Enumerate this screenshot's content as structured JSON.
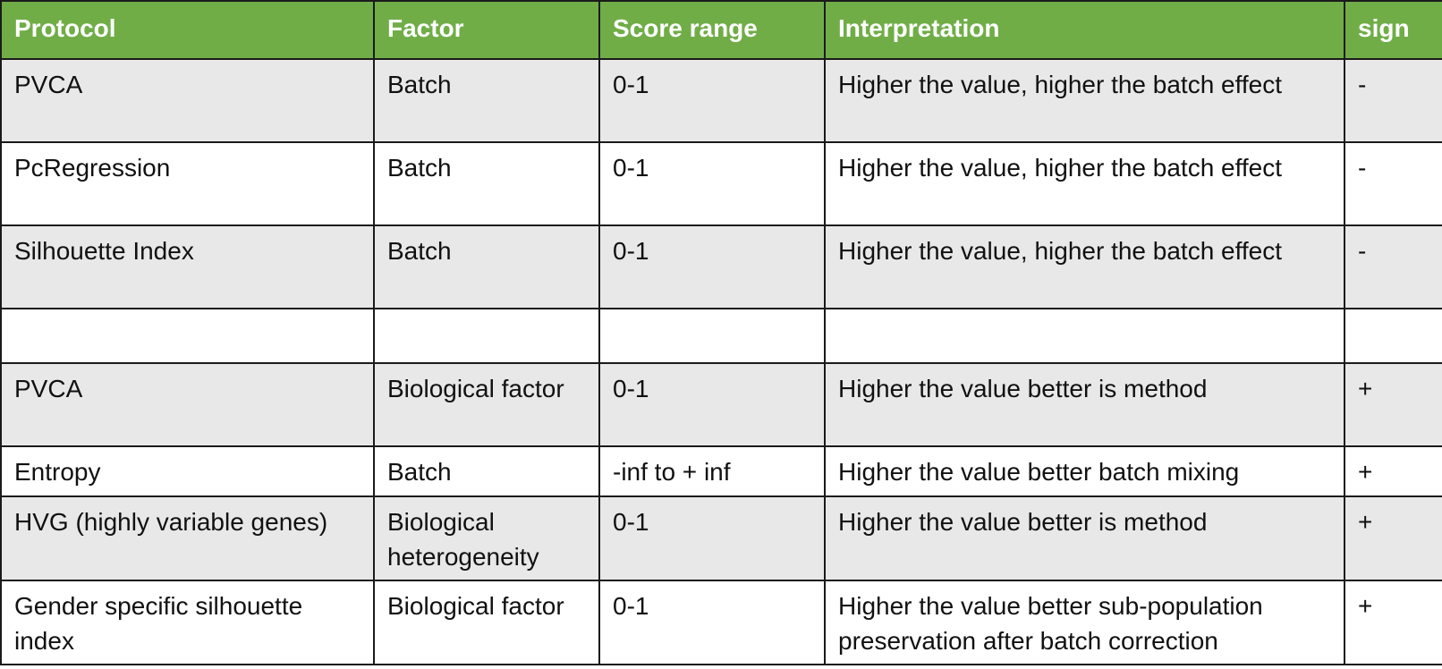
{
  "header": {
    "protocol": "Protocol",
    "factor": "Factor",
    "score_range": "Score range",
    "interpretation": "Interpretation",
    "sign": "sign"
  },
  "rows": [
    {
      "protocol": "PVCA",
      "factor": "Batch",
      "score_range": "0-1",
      "interpretation": "Higher the value, higher the batch effect",
      "sign": "-"
    },
    {
      "protocol": "PcRegression",
      "factor": "Batch",
      "score_range": "0-1",
      "interpretation": "Higher the value, higher the batch effect",
      "sign": "-"
    },
    {
      "protocol": "Silhouette Index",
      "factor": "Batch",
      "score_range": "0-1",
      "interpretation": "Higher the value, higher the batch effect",
      "sign": "-"
    },
    {
      "protocol": "",
      "factor": "",
      "score_range": "",
      "interpretation": "",
      "sign": ""
    },
    {
      "protocol": "PVCA",
      "factor": "Biological factor",
      "score_range": "0-1",
      "interpretation": "Higher the value better is method",
      "sign": "+"
    },
    {
      "protocol": "Entropy",
      "factor": "Batch",
      "score_range": "-inf to + inf",
      "interpretation": "Higher the value better batch mixing",
      "sign": "+"
    },
    {
      "protocol": "HVG (highly variable genes)",
      "factor": "Biological heterogeneity",
      "score_range": "0-1",
      "interpretation": "Higher the value better is method",
      "sign": "+"
    },
    {
      "protocol": "Gender specific silhouette index",
      "factor": "Biological factor",
      "score_range": "0-1",
      "interpretation": "Higher the value better sub-population preservation after batch correction",
      "sign": "+"
    }
  ],
  "colors": {
    "header_bg": "#70ad47",
    "row_alt_bg": "#e8e8e8",
    "border": "#1a1a1a"
  }
}
